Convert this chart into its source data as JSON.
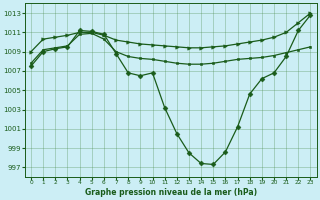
{
  "title": "Graphe pression niveau de la mer (hPa)",
  "background_color": "#cceef5",
  "grid_color": "#4a8a4a",
  "line_color": "#1a5c1a",
  "xlim": [
    -0.5,
    23.5
  ],
  "ylim": [
    996.0,
    1014.0
  ],
  "yticks": [
    997,
    999,
    1001,
    1003,
    1005,
    1007,
    1009,
    1011,
    1013
  ],
  "xticks": [
    0,
    1,
    2,
    3,
    4,
    5,
    6,
    7,
    8,
    9,
    10,
    11,
    12,
    13,
    14,
    15,
    16,
    17,
    18,
    19,
    20,
    21,
    22,
    23
  ],
  "series": [
    {
      "x": [
        0,
        1,
        2,
        3,
        4,
        5,
        6,
        7,
        8,
        9,
        10,
        11,
        12,
        13,
        14,
        15,
        16,
        17,
        18,
        19,
        20,
        21,
        22,
        23
      ],
      "y": [
        1007.5,
        1009.0,
        1009.3,
        1009.5,
        1011.2,
        1011.1,
        1010.8,
        1008.8,
        1006.8,
        1006.5,
        1006.8,
        1003.2,
        1000.5,
        998.5,
        997.4,
        997.3,
        998.6,
        1001.2,
        1004.6,
        1006.2,
        1006.8,
        1008.5,
        1011.2,
        1012.8
      ],
      "marker": "D",
      "markersize": 2.5,
      "linewidth": 0.9
    },
    {
      "x": [
        0,
        1,
        2,
        3,
        4,
        5,
        6,
        7,
        8,
        9,
        10,
        11,
        12,
        13,
        14,
        15,
        16,
        17,
        18,
        19,
        20,
        21,
        22,
        23
      ],
      "y": [
        1009.0,
        1010.3,
        1010.5,
        1010.7,
        1011.0,
        1011.0,
        1010.7,
        1010.2,
        1010.0,
        1009.8,
        1009.7,
        1009.6,
        1009.5,
        1009.4,
        1009.4,
        1009.5,
        1009.6,
        1009.8,
        1010.0,
        1010.2,
        1010.5,
        1011.0,
        1012.0,
        1013.0
      ],
      "marker": ">",
      "markersize": 2.5,
      "linewidth": 0.9
    },
    {
      "x": [
        0,
        1,
        2,
        3,
        4,
        5,
        6,
        7,
        8,
        9,
        10,
        11,
        12,
        13,
        14,
        15,
        16,
        17,
        18,
        19,
        20,
        21,
        22,
        23
      ],
      "y": [
        1007.8,
        1009.2,
        1009.4,
        1009.6,
        1010.8,
        1010.9,
        1010.3,
        1009.0,
        1008.5,
        1008.3,
        1008.2,
        1008.0,
        1007.8,
        1007.7,
        1007.7,
        1007.8,
        1008.0,
        1008.2,
        1008.3,
        1008.4,
        1008.6,
        1008.9,
        1009.2,
        1009.5
      ],
      "marker": "s",
      "markersize": 2.0,
      "linewidth": 0.9
    }
  ]
}
